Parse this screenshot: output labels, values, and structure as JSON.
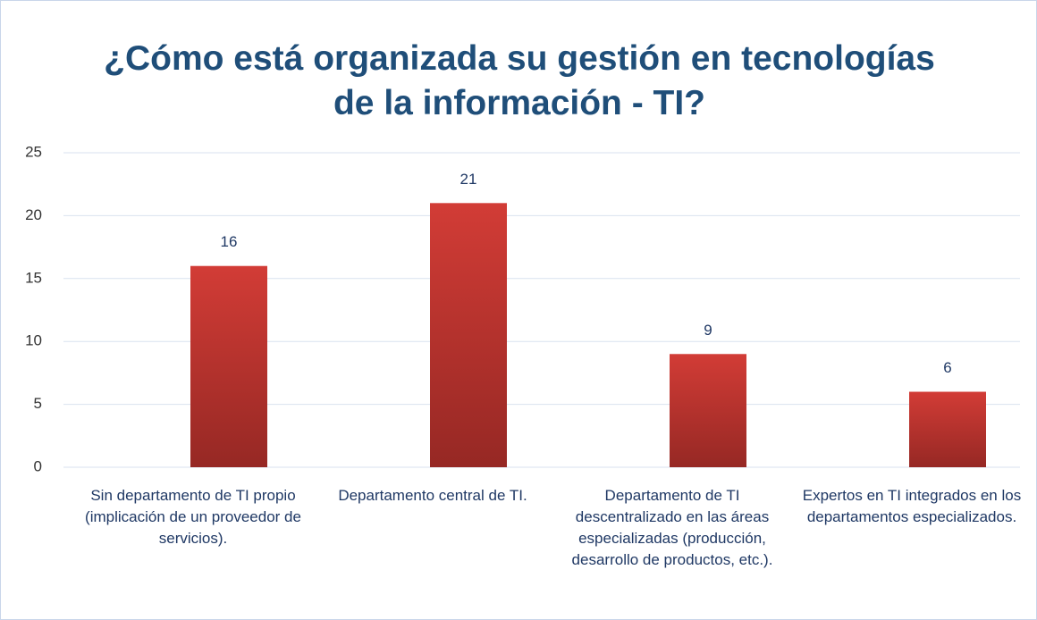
{
  "chart_data": {
    "type": "bar",
    "title": "¿Cómo está organizada su gestión en tecnologías de la información - TI?",
    "categories": [
      "Sin departamento de TI propio (implicación de un proveedor de servicios).",
      "Departamento central de TI.",
      "Departamento de TI descentralizado en las áreas especializadas (producción, desarrollo de productos, etc.).",
      "Expertos en TI integrados en los departamentos especializados."
    ],
    "values": [
      16,
      21,
      9,
      6
    ],
    "color": "#c0392f",
    "ylim": [
      0,
      25
    ],
    "yticks": [
      0,
      5,
      10,
      15,
      20,
      25
    ],
    "grid": true
  }
}
